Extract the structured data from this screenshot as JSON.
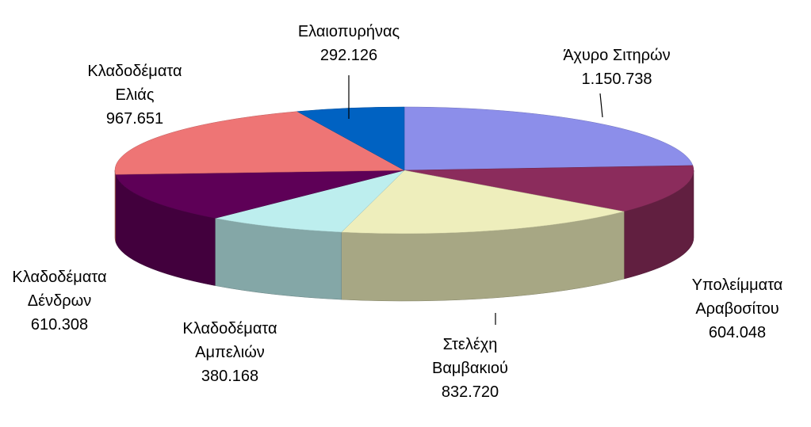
{
  "chart_data": {
    "type": "pie3d",
    "categories": [
      "Άχυρο Σιτηρών",
      "Υπολείμματα Αραβοσίτου",
      "Στελέχη Βαμβακιού",
      "Κλαδοδέματα Αμπελιών",
      "Κλαδοδέματα Δένδρων",
      "Κλαδοδέματα Ελιάς",
      "Ελαιοπυρήνας"
    ],
    "values": [
      1150738,
      604048,
      832720,
      380168,
      610308,
      967651,
      292126
    ],
    "value_labels": [
      "1.150.738",
      "604.048",
      "832.720",
      "380.168",
      "610.308",
      "967.651",
      "292.126"
    ],
    "colors": [
      "#8c8eea",
      "#8b2c5c",
      "#eeeebc",
      "#bdeeee",
      "#5e0057",
      "#ee7575",
      "#0062c2"
    ]
  }
}
